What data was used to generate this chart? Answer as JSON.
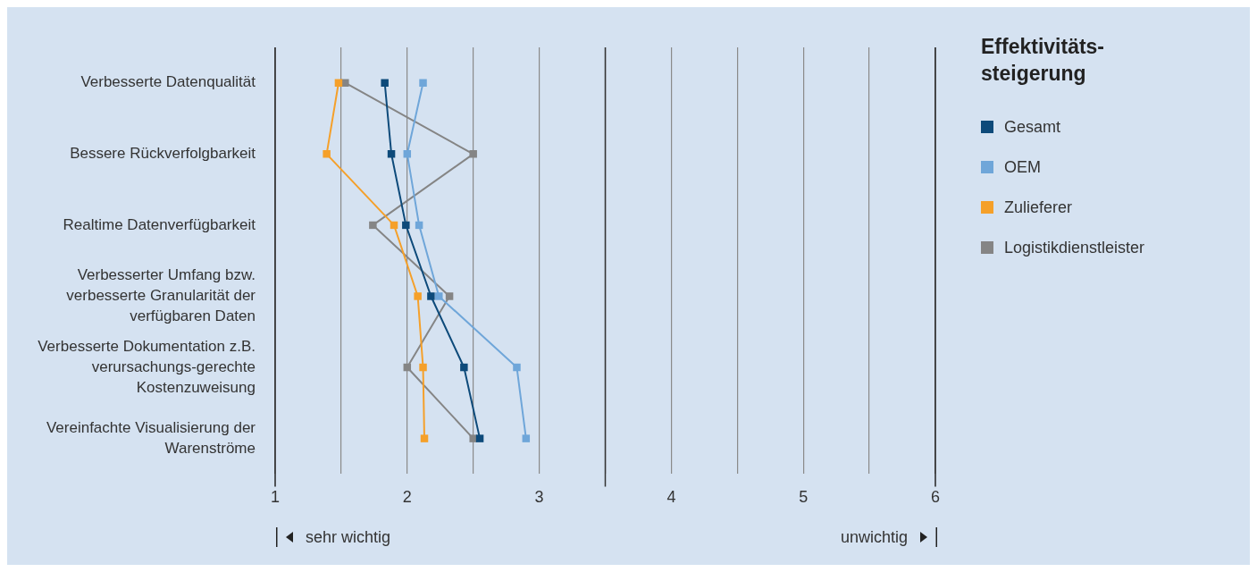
{
  "chart_data": {
    "type": "line",
    "orientation": "horizontal",
    "legend_title": "Effektivitäts-steigerung",
    "legend": "right",
    "marker": "square",
    "grid": "x",
    "categories": [
      "Verbesserte Datenqualität",
      "Bessere Rückverfolgbarkeit",
      "Realtime Datenverfügbarkeit",
      "Verbesserter Umfang bzw. verbesserte Granularität der verfügbaren Daten",
      "Verbesserte Dokumentation z.B. verursachungs-gerechte Kostenzuweisung",
      "Vereinfachte Visualisierung der Warenströme"
    ],
    "series": [
      {
        "name": "Gesamt",
        "color": "#0d4a7a",
        "values": [
          1.83,
          1.88,
          1.99,
          2.18,
          2.43,
          2.55
        ]
      },
      {
        "name": "OEM",
        "color": "#6fa6d9",
        "values": [
          2.12,
          2.0,
          2.09,
          2.24,
          2.83,
          2.9
        ]
      },
      {
        "name": "Zulieferer",
        "color": "#f5a02a",
        "values": [
          1.48,
          1.39,
          1.9,
          2.08,
          2.12,
          2.13
        ]
      },
      {
        "name": "Logistikdienstleister",
        "color": "#858585",
        "values": [
          1.53,
          2.5,
          1.74,
          2.32,
          2.0,
          2.5
        ]
      }
    ],
    "xlim": [
      1,
      6
    ],
    "xticks": [
      1,
      {
        "value": 1.5,
        "label": null
      },
      2,
      {
        "value": 2.5,
        "label": null
      },
      3,
      {
        "value": 3.5,
        "label": null
      },
      4,
      {
        "value": 4.5,
        "label": null
      },
      5,
      {
        "value": 5.5,
        "label": null
      },
      6
    ],
    "ref_lines": [
      {
        "axis": "x",
        "value": 3.5,
        "color": "#333333"
      }
    ],
    "annotations": [
      "sehr wichtig",
      "unwichtig"
    ]
  }
}
